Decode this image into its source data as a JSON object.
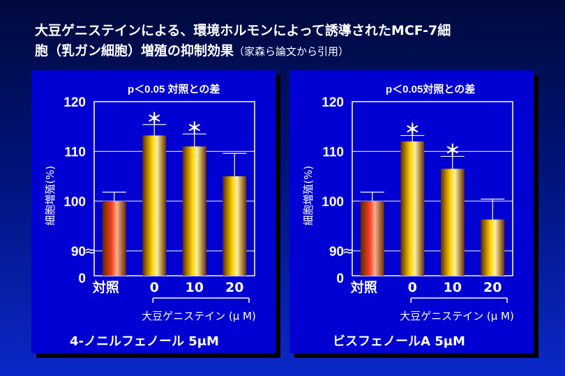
{
  "slide": {
    "title": "大豆ゲニステインによる、環境ホルモンによって誘導されたMCF-7細",
    "title_cont": "胞（乳ガン細胞）増殖の抑制効果",
    "title_note": "（家森ら論文から引用）"
  },
  "chart_data": [
    {
      "type": "bar",
      "sig_note": "p＜0.05 対照との差",
      "ylabel": "細胞増殖(%)",
      "xlabel": "大豆ゲニステイン (μ M)",
      "caption": "4-ノニルフェノール 5μM",
      "ylim": [
        85,
        120
      ],
      "yticks": [
        "0",
        "90",
        "100",
        "110",
        "120"
      ],
      "axis_break": "≈",
      "categories": [
        "対照",
        "0",
        "10",
        "20"
      ],
      "values": [
        100,
        113.2,
        111,
        105
      ],
      "errors": [
        1.8,
        2.2,
        2.5,
        4.6
      ],
      "significant": [
        false,
        true,
        true,
        false
      ],
      "sig_mark": "＊",
      "bar_colors": [
        "#ff4020",
        "#ffd000",
        "#ffd000",
        "#ffd000"
      ]
    },
    {
      "type": "bar",
      "sig_note": "p＜0.05対照との差",
      "ylabel": "細胞増殖(%)",
      "xlabel": "大豆ゲニステイン (μ M)",
      "caption": "ビスフェノールA 5μM",
      "ylim": [
        85,
        120
      ],
      "yticks": [
        "0",
        "90",
        "100",
        "110",
        "120"
      ],
      "axis_break": "≈",
      "categories": [
        "対照",
        "0",
        "10",
        "20"
      ],
      "values": [
        100,
        112,
        106.5,
        96.3
      ],
      "errors": [
        1.8,
        1.2,
        2.5,
        4.1
      ],
      "significant": [
        false,
        true,
        true,
        false
      ],
      "sig_mark": "＊",
      "bar_colors": [
        "#ff4020",
        "#ffd000",
        "#ffd000",
        "#ffd000"
      ]
    }
  ]
}
